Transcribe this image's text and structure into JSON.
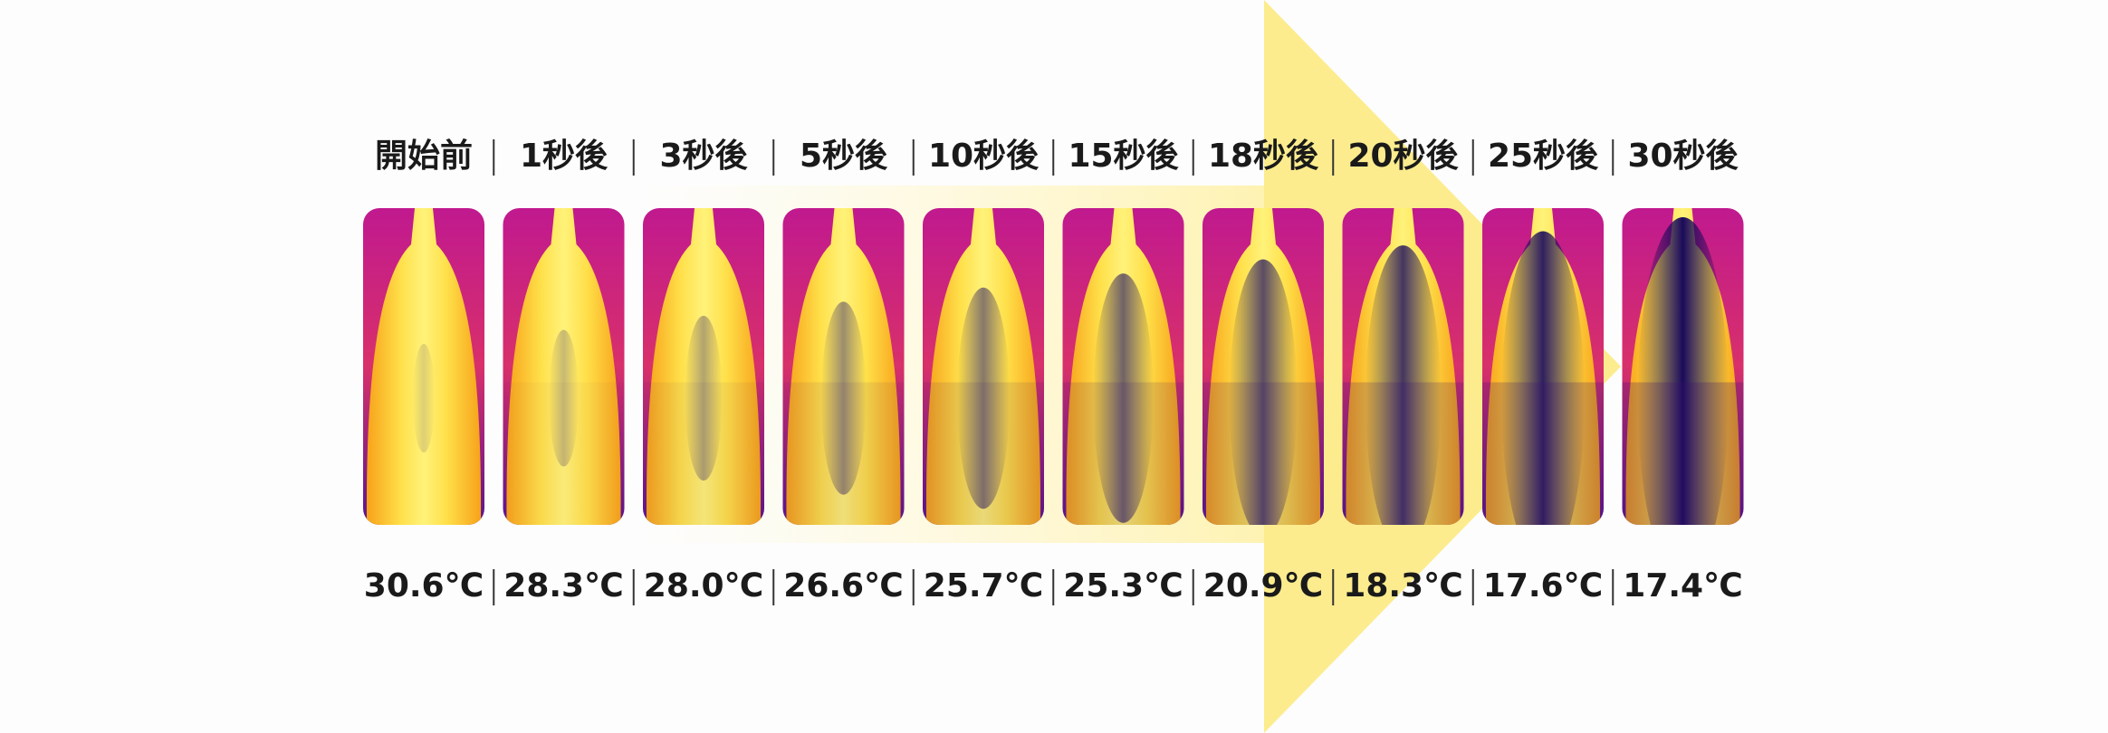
{
  "frames": [
    {
      "label": "開始前",
      "temperature": "30.6℃"
    },
    {
      "label": "1秒後",
      "temperature": "28.3℃"
    },
    {
      "label": "3秒後",
      "temperature": "28.0℃"
    },
    {
      "label": "5秒後",
      "temperature": "26.6℃"
    },
    {
      "label": "10秒後",
      "temperature": "25.7℃"
    },
    {
      "label": "15秒後",
      "temperature": "25.3℃"
    },
    {
      "label": "18秒後",
      "temperature": "20.9℃"
    },
    {
      "label": "20秒後",
      "temperature": "18.3℃"
    },
    {
      "label": "25秒後",
      "temperature": "17.6℃"
    },
    {
      "label": "30秒後",
      "temperature": "17.4℃"
    }
  ]
}
